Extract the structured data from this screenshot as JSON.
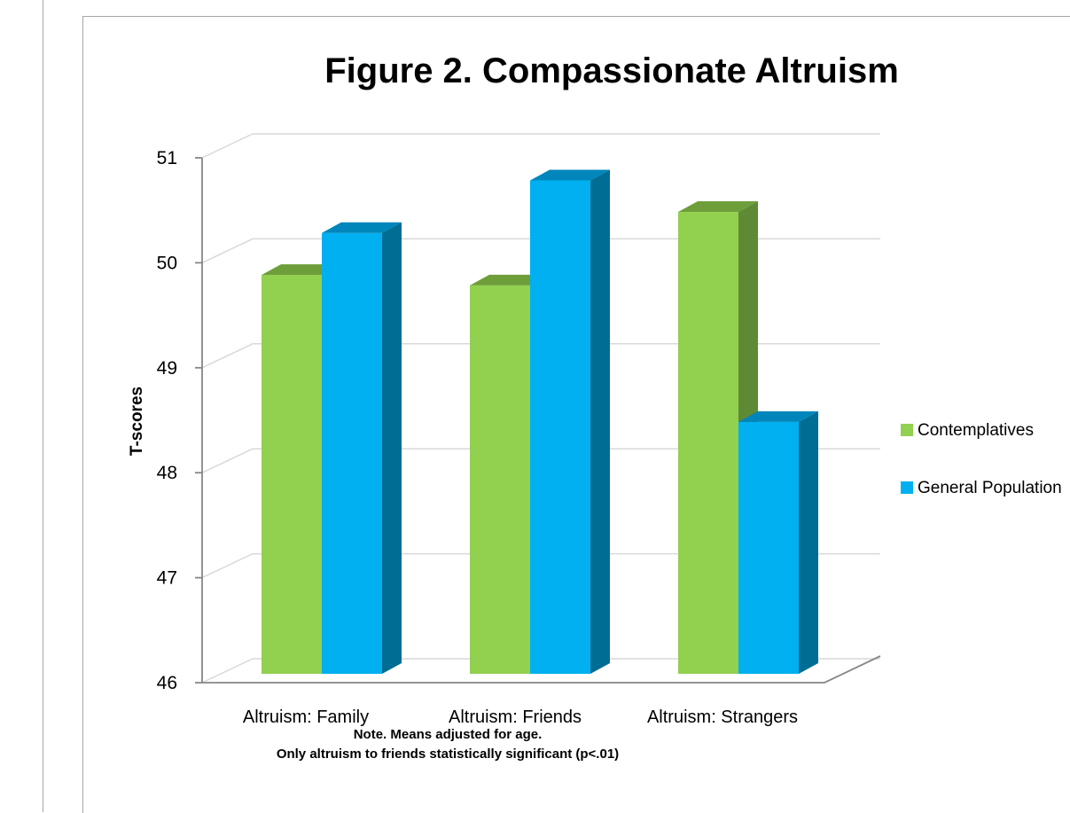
{
  "chart_data": {
    "type": "bar",
    "title": "Figure 2. Compassionate Altruism",
    "ylabel": "T-scores",
    "xlabel": "",
    "ylim": [
      46,
      51
    ],
    "yticks": [
      "46",
      "47",
      "48",
      "49",
      "50",
      "51"
    ],
    "categories": [
      "Altruism: Family",
      "Altruism: Friends",
      "Altruism: Strangers"
    ],
    "series": [
      {
        "name": "Contemplatives",
        "values": [
          49.8,
          49.7,
          50.4
        ],
        "color": "#92d050",
        "side_color": "#5f8a35",
        "top_color": "#6e9e3a"
      },
      {
        "name": "General Population",
        "values": [
          50.2,
          50.7,
          48.4
        ],
        "color": "#00b0f0",
        "side_color": "#006d95",
        "top_color": "#0086ba"
      }
    ],
    "grid": true,
    "legend_position": "right",
    "style": "3d-clustered-column",
    "note_lines": [
      "Note. Means adjusted for age.",
      "Only altruism to friends statistically significant (p<.01)"
    ]
  }
}
